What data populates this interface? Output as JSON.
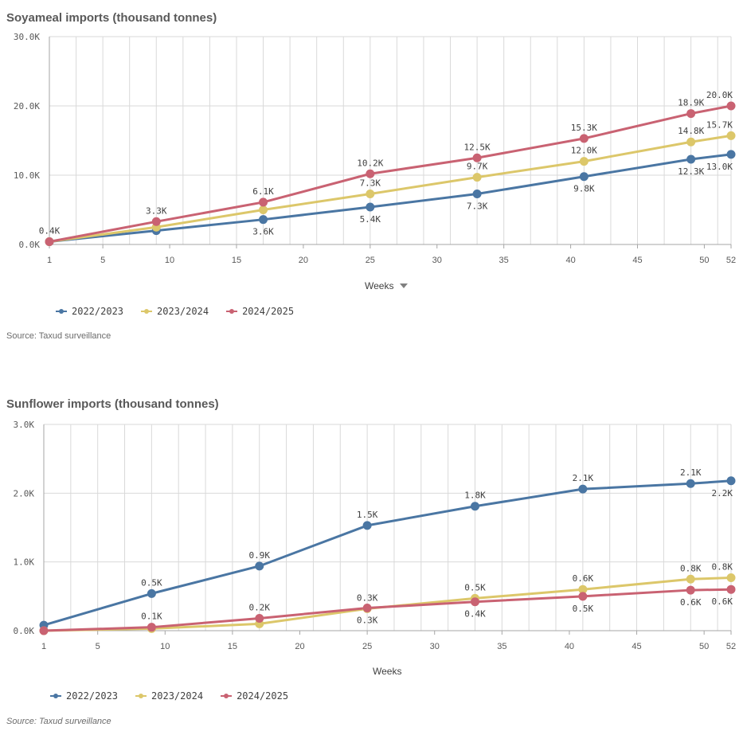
{
  "colors": {
    "2022/2023": "#4a76a3",
    "2023/2024": "#dcc76a",
    "2024/2025": "#c96272",
    "grid": "#d9d9d9",
    "axis": "#a6a6a6"
  },
  "chart_data": [
    {
      "type": "line",
      "title": "Soyameal imports (thousand tonnes)",
      "xlabel": "Weeks",
      "ylabel": "",
      "xlim": [
        1,
        52
      ],
      "ylim": [
        0,
        30
      ],
      "xticks": [
        1,
        5,
        10,
        15,
        20,
        25,
        30,
        35,
        40,
        45,
        50,
        52
      ],
      "yticks": [
        0,
        10,
        20,
        30
      ],
      "ytick_labels": [
        "0.0K",
        "10.0K",
        "20.0K",
        "30.0K"
      ],
      "grid": true,
      "legend_position": "bottom-left",
      "series": [
        {
          "name": "2022/2023",
          "x": [
            1,
            9,
            17,
            25,
            33,
            41,
            49,
            52
          ],
          "y": [
            0.4,
            2.0,
            3.6,
            5.4,
            7.3,
            9.8,
            12.3,
            13.0
          ],
          "labels": [
            "",
            "",
            "3.6K",
            "5.4K",
            "7.3K",
            "9.8K",
            "12.3K",
            "13.0K"
          ]
        },
        {
          "name": "2023/2024",
          "x": [
            1,
            9,
            17,
            25,
            33,
            41,
            49,
            52
          ],
          "y": [
            0.4,
            2.5,
            5.0,
            7.3,
            9.7,
            12.0,
            14.8,
            15.7
          ],
          "labels": [
            "",
            "",
            "",
            "7.3K",
            "9.7K",
            "12.0K",
            "14.8K",
            "15.7K"
          ]
        },
        {
          "name": "2024/2025",
          "x": [
            1,
            9,
            17,
            25,
            33,
            41,
            49,
            52
          ],
          "y": [
            0.4,
            3.3,
            6.1,
            10.2,
            12.5,
            15.3,
            18.9,
            20.0
          ],
          "labels": [
            "0.4K",
            "3.3K",
            "6.1K",
            "10.2K",
            "12.5K",
            "15.3K",
            "18.9K",
            "20.0K"
          ]
        }
      ],
      "source": "Source: Taxud surveillance"
    },
    {
      "type": "line",
      "title": "Sunflower imports (thousand tonnes)",
      "xlabel": "Weeks",
      "ylabel": "",
      "xlim": [
        1,
        52
      ],
      "ylim": [
        0,
        3
      ],
      "xticks": [
        1,
        5,
        10,
        15,
        20,
        25,
        30,
        35,
        40,
        45,
        50,
        52
      ],
      "yticks": [
        0,
        1,
        2,
        3
      ],
      "ytick_labels": [
        "0.0K",
        "1.0K",
        "2.0K",
        "3.0K"
      ],
      "grid": true,
      "legend_position": "bottom-left",
      "series": [
        {
          "name": "2022/2023",
          "x": [
            1,
            9,
            17,
            25,
            33,
            41,
            49,
            52
          ],
          "y": [
            0.08,
            0.54,
            0.94,
            1.53,
            1.81,
            2.06,
            2.14,
            2.18
          ],
          "labels": [
            "",
            "0.5K",
            "0.9K",
            "1.5K",
            "1.8K",
            "2.1K",
            "2.1K",
            "2.2K"
          ]
        },
        {
          "name": "2023/2024",
          "x": [
            1,
            9,
            17,
            25,
            33,
            41,
            49,
            52
          ],
          "y": [
            0.0,
            0.03,
            0.1,
            0.32,
            0.47,
            0.6,
            0.75,
            0.77
          ],
          "labels": [
            "",
            "",
            "",
            "0.3K",
            "0.5K",
            "0.6K",
            "0.8K",
            "0.8K"
          ]
        },
        {
          "name": "2024/2025",
          "x": [
            1,
            9,
            17,
            25,
            33,
            41,
            49,
            52
          ],
          "y": [
            0.0,
            0.05,
            0.18,
            0.33,
            0.42,
            0.5,
            0.59,
            0.6
          ],
          "labels": [
            "",
            "0.1K",
            "0.2K",
            "0.3K",
            "0.4K",
            "0.5K",
            "0.6K",
            "0.6K"
          ]
        }
      ],
      "source": "Source: Taxud surveillance"
    }
  ]
}
